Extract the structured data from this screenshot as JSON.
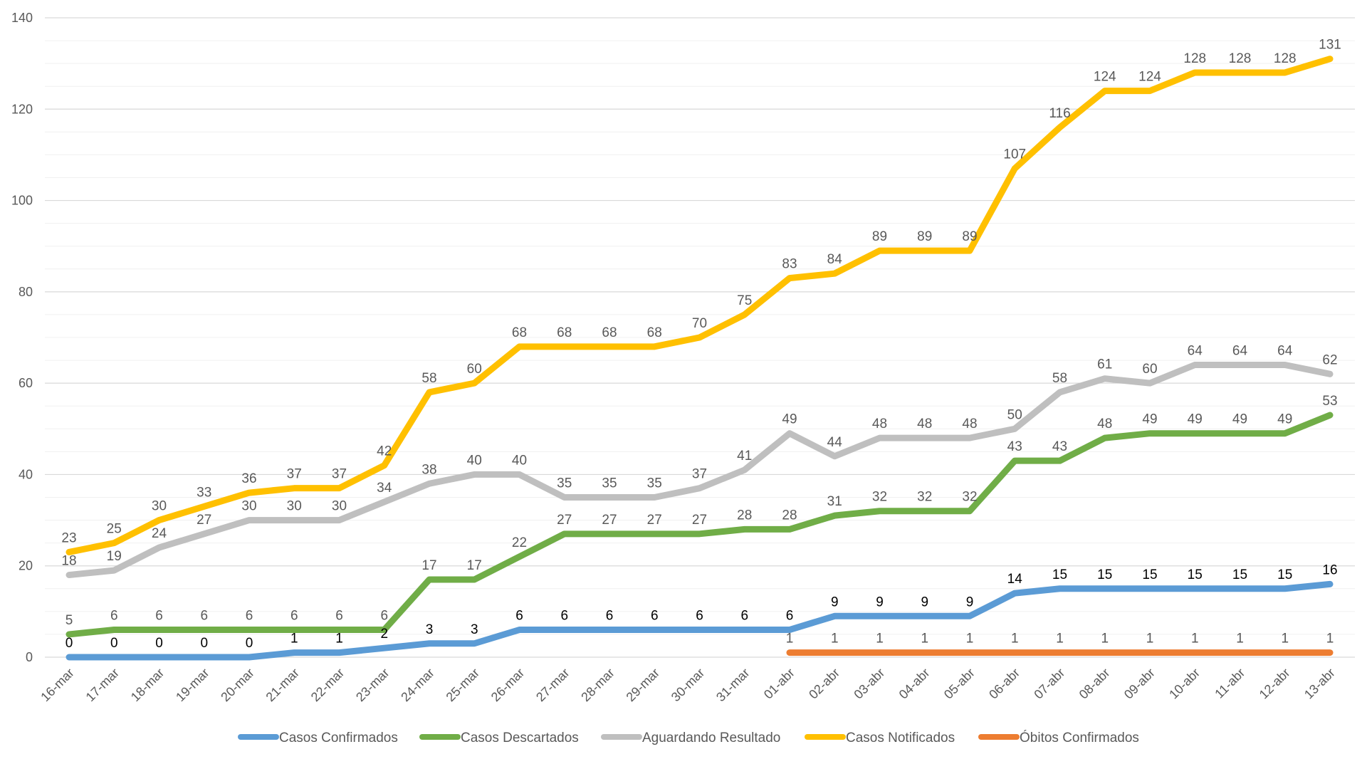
{
  "chart_data": {
    "type": "line",
    "title": "",
    "xlabel": "",
    "ylabel": "",
    "ylim": [
      0,
      140
    ],
    "yticks": [
      0,
      20,
      40,
      60,
      80,
      100,
      120,
      140
    ],
    "grid": true,
    "legend_position": "bottom",
    "categories": [
      "16-mar",
      "17-mar",
      "18-mar",
      "19-mar",
      "20-mar",
      "21-mar",
      "22-mar",
      "23-mar",
      "24-mar",
      "25-mar",
      "26-mar",
      "27-mar",
      "28-mar",
      "29-mar",
      "30-mar",
      "31-mar",
      "01-abr",
      "02-abr",
      "03-abr",
      "04-abr",
      "05-abr",
      "06-abr",
      "07-abr",
      "08-abr",
      "09-abr",
      "10-abr",
      "11-abr",
      "12-abr",
      "13-abr"
    ],
    "series": [
      {
        "name": "Casos Confirmados",
        "color": "#5b9bd5",
        "label_color": "#000000",
        "values": [
          0,
          0,
          0,
          0,
          0,
          1,
          1,
          2,
          3,
          3,
          6,
          6,
          6,
          6,
          6,
          6,
          6,
          9,
          9,
          9,
          9,
          14,
          15,
          15,
          15,
          15,
          15,
          15,
          16
        ],
        "labels": [
          "0",
          "0",
          "0",
          "0",
          "0",
          "1",
          "1",
          "2",
          "3",
          "3",
          "6",
          "6",
          "6",
          "6",
          "6",
          "6",
          "6",
          "9",
          "9",
          "9",
          "9",
          "14",
          "15",
          "15",
          "15",
          "15",
          "15",
          "15",
          "16"
        ]
      },
      {
        "name": "Casos Descartados",
        "color": "#70ad47",
        "label_color": "#595959",
        "values": [
          5,
          6,
          6,
          6,
          6,
          6,
          6,
          6,
          17,
          17,
          22,
          27,
          27,
          27,
          27,
          28,
          28,
          31,
          32,
          32,
          32,
          43,
          43,
          48,
          49,
          49,
          49,
          49,
          53
        ],
        "labels": [
          "5",
          "6",
          "6",
          "6",
          "6",
          "6",
          "6",
          "6",
          "17",
          "17",
          "22",
          "27",
          "27",
          "27",
          "27",
          "28",
          "28",
          "31",
          "32",
          "32",
          "32",
          "43",
          "43",
          "48",
          "49",
          "49",
          "49",
          "49",
          "53"
        ]
      },
      {
        "name": "Aguardando Resultado",
        "color": "#bfbfbf",
        "label_color": "#595959",
        "values": [
          18,
          19,
          24,
          27,
          30,
          30,
          30,
          34,
          38,
          40,
          40,
          35,
          35,
          35,
          37,
          41,
          49,
          44,
          48,
          48,
          48,
          50,
          58,
          61,
          60,
          64,
          64,
          64,
          62
        ],
        "labels": [
          "18",
          "19",
          "24",
          "27",
          "30",
          "30",
          "30",
          "34",
          "38",
          "40",
          "40",
          "35",
          "35",
          "35",
          "37",
          "41",
          "49",
          "44",
          "48",
          "48",
          "48",
          "50",
          "58",
          "61",
          "60",
          "64",
          "64",
          "64",
          "62"
        ]
      },
      {
        "name": "Casos Notificados",
        "color": "#ffc000",
        "label_color": "#595959",
        "values": [
          23,
          25,
          30,
          33,
          36,
          37,
          37,
          42,
          58,
          60,
          68,
          68,
          68,
          68,
          70,
          75,
          83,
          84,
          89,
          89,
          89,
          107,
          116,
          124,
          124,
          128,
          128,
          128,
          131
        ],
        "labels": [
          "23",
          "25",
          "30",
          "33",
          "36",
          "37",
          "37",
          "42",
          "58",
          "60",
          "68",
          "68",
          "68",
          "68",
          "70",
          "75",
          "83",
          "84",
          "89",
          "89",
          "89",
          "107",
          "116",
          "124",
          "124",
          "128",
          "128",
          "128",
          "131"
        ]
      },
      {
        "name": "Óbitos Confirmados",
        "color": "#ed7d31",
        "label_color": "#595959",
        "values": [
          null,
          null,
          null,
          null,
          null,
          null,
          null,
          null,
          null,
          null,
          null,
          null,
          null,
          null,
          null,
          null,
          1,
          1,
          1,
          1,
          1,
          1,
          1,
          1,
          1,
          1,
          1,
          1,
          1
        ],
        "labels": [
          "",
          "",
          "",
          "",
          "",
          "",
          "",
          "",
          "",
          "",
          "",
          "",
          "",
          "",
          "",
          "",
          "1",
          "1",
          "1",
          "1",
          "1",
          "1",
          "1",
          "1",
          "1",
          "1",
          "1",
          "1",
          "1"
        ]
      }
    ]
  }
}
